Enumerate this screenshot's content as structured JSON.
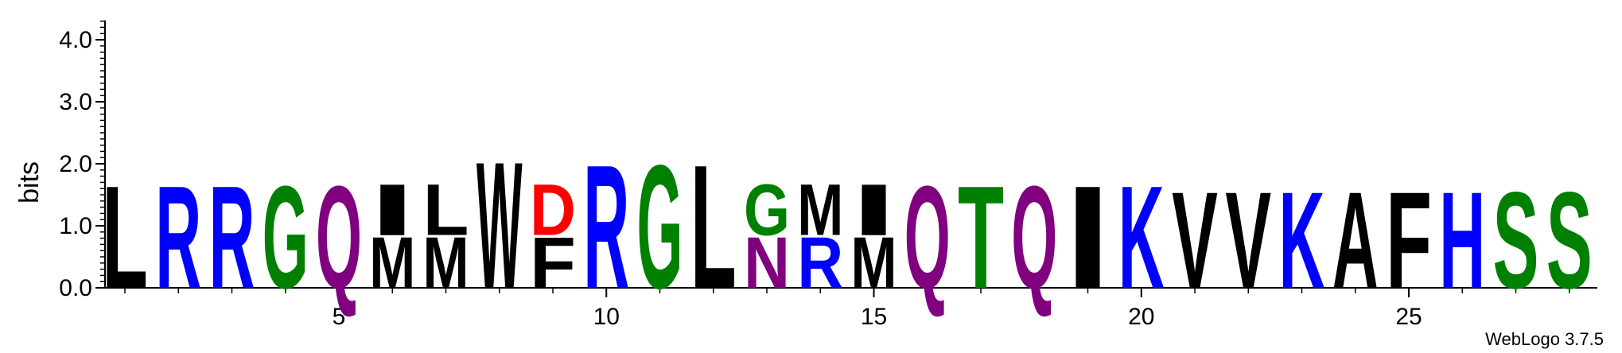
{
  "chart_data": {
    "type": "sequence-logo",
    "ylabel": "bits",
    "ylim": [
      0,
      4.3
    ],
    "y_ticks": [
      "0.0",
      "1.0",
      "2.0",
      "3.0",
      "4.0"
    ],
    "x_ticks": [
      "5",
      "10",
      "15",
      "20",
      "25"
    ],
    "grid": false,
    "credit": "WebLogo 3.7.5",
    "colors": {
      "hydrophobic": "#000000",
      "basic": "#0000ff",
      "acidic": "#ff0000",
      "polar_green": "#008000",
      "polar_purple": "#800080"
    },
    "positions": [
      {
        "pos": 1,
        "stack": [
          {
            "letter": "L",
            "bits": 1.7,
            "color": "#000000"
          }
        ]
      },
      {
        "pos": 2,
        "stack": [
          {
            "letter": "R",
            "bits": 1.7,
            "color": "#0000ff"
          }
        ]
      },
      {
        "pos": 3,
        "stack": [
          {
            "letter": "R",
            "bits": 1.7,
            "color": "#0000ff"
          }
        ]
      },
      {
        "pos": 4,
        "stack": [
          {
            "letter": "G",
            "bits": 1.7,
            "color": "#008000"
          }
        ]
      },
      {
        "pos": 5,
        "stack": [
          {
            "letter": "Q",
            "bits": 1.7,
            "color": "#800080"
          }
        ]
      },
      {
        "pos": 6,
        "stack": [
          {
            "letter": "M",
            "bits": 0.85,
            "color": "#000000"
          },
          {
            "letter": "I",
            "bits": 0.85,
            "color": "#000000"
          }
        ]
      },
      {
        "pos": 7,
        "stack": [
          {
            "letter": "M",
            "bits": 0.85,
            "color": "#000000"
          },
          {
            "letter": "L",
            "bits": 0.85,
            "color": "#000000"
          }
        ]
      },
      {
        "pos": 8,
        "stack": [
          {
            "letter": "W",
            "bits": 2.1,
            "color": "#000000"
          }
        ]
      },
      {
        "pos": 9,
        "stack": [
          {
            "letter": "F",
            "bits": 0.85,
            "color": "#000000"
          },
          {
            "letter": "D",
            "bits": 0.85,
            "color": "#ff0000"
          }
        ]
      },
      {
        "pos": 10,
        "stack": [
          {
            "letter": "R",
            "bits": 2.05,
            "color": "#0000ff"
          }
        ]
      },
      {
        "pos": 11,
        "stack": [
          {
            "letter": "G",
            "bits": 2.05,
            "color": "#008000"
          }
        ]
      },
      {
        "pos": 12,
        "stack": [
          {
            "letter": "L",
            "bits": 2.05,
            "color": "#000000"
          }
        ]
      },
      {
        "pos": 13,
        "stack": [
          {
            "letter": "N",
            "bits": 0.85,
            "color": "#800080"
          },
          {
            "letter": "G",
            "bits": 0.85,
            "color": "#008000"
          }
        ]
      },
      {
        "pos": 14,
        "stack": [
          {
            "letter": "R",
            "bits": 0.85,
            "color": "#0000ff"
          },
          {
            "letter": "M",
            "bits": 0.85,
            "color": "#000000"
          }
        ]
      },
      {
        "pos": 15,
        "stack": [
          {
            "letter": "M",
            "bits": 0.85,
            "color": "#000000"
          },
          {
            "letter": "I",
            "bits": 0.85,
            "color": "#000000"
          }
        ]
      },
      {
        "pos": 16,
        "stack": [
          {
            "letter": "Q",
            "bits": 1.7,
            "color": "#800080"
          }
        ]
      },
      {
        "pos": 17,
        "stack": [
          {
            "letter": "T",
            "bits": 1.7,
            "color": "#008000"
          }
        ]
      },
      {
        "pos": 18,
        "stack": [
          {
            "letter": "Q",
            "bits": 1.7,
            "color": "#800080"
          }
        ]
      },
      {
        "pos": 19,
        "stack": [
          {
            "letter": "I",
            "bits": 1.7,
            "color": "#000000"
          }
        ]
      },
      {
        "pos": 20,
        "stack": [
          {
            "letter": "K",
            "bits": 1.7,
            "color": "#0000ff"
          }
        ]
      },
      {
        "pos": 21,
        "stack": [
          {
            "letter": "V",
            "bits": 1.6,
            "color": "#000000"
          }
        ]
      },
      {
        "pos": 22,
        "stack": [
          {
            "letter": "V",
            "bits": 1.6,
            "color": "#000000"
          }
        ]
      },
      {
        "pos": 23,
        "stack": [
          {
            "letter": "K",
            "bits": 1.6,
            "color": "#0000ff"
          }
        ]
      },
      {
        "pos": 24,
        "stack": [
          {
            "letter": "A",
            "bits": 1.6,
            "color": "#000000"
          }
        ]
      },
      {
        "pos": 25,
        "stack": [
          {
            "letter": "F",
            "bits": 1.6,
            "color": "#000000"
          }
        ]
      },
      {
        "pos": 26,
        "stack": [
          {
            "letter": "H",
            "bits": 1.6,
            "color": "#0000ff"
          }
        ]
      },
      {
        "pos": 27,
        "stack": [
          {
            "letter": "S",
            "bits": 1.6,
            "color": "#008000"
          }
        ]
      },
      {
        "pos": 28,
        "stack": [
          {
            "letter": "S",
            "bits": 1.6,
            "color": "#008000"
          }
        ]
      }
    ]
  }
}
